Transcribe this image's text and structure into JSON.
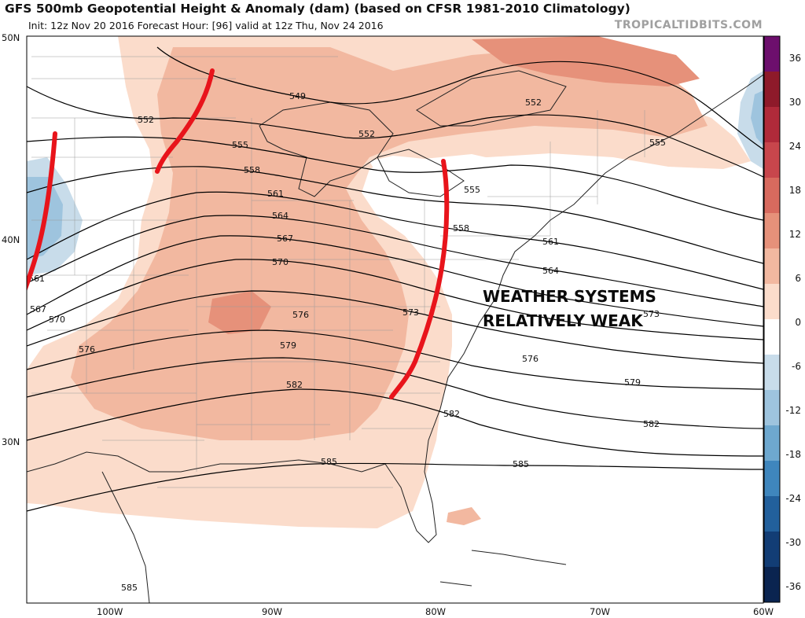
{
  "header": {
    "title": "GFS 500mb Geopotential Height & Anomaly (dam) (based on CFSR 1981-2010 Climatology)",
    "subtitle": "Init: 12z Nov 20 2016   Forecast Hour: [96]   valid at 12z Thu, Nov 24 2016",
    "source": "TROPICALTIDBITS.COM"
  },
  "axes": {
    "lat_labels": [
      "50N",
      "40N",
      "30N"
    ],
    "lon_labels": [
      "100W",
      "90W",
      "80W",
      "70W",
      "60W"
    ]
  },
  "colorbar": {
    "ticks": [
      "36",
      "30",
      "24",
      "18",
      "12",
      "6",
      "0",
      "-6",
      "-12",
      "-18",
      "-24",
      "-30",
      "-36"
    ],
    "colors": [
      "#6d0f6d",
      "#8e1a2a",
      "#b02a3a",
      "#c8464c",
      "#d86a5e",
      "#e6917a",
      "#f2b8a0",
      "#fbdccb",
      "#ffffff",
      "#c8dcea",
      "#9ec4de",
      "#6ea8cf",
      "#3f86bd",
      "#22609c",
      "#123d75",
      "#0a2450"
    ]
  },
  "contour_labels": {
    "c549": "549",
    "c552a": "552",
    "c552b": "552",
    "c552c": "552",
    "c555a": "555",
    "c555b": "555",
    "c555c": "555",
    "c558a": "558",
    "c558b": "558",
    "c561a": "561",
    "c561b": "561",
    "c561c": "561",
    "c564a": "564",
    "c564b": "564",
    "c567a": "567",
    "c567b": "567",
    "c570a": "570",
    "c570b": "570",
    "c573a": "573",
    "c573b": "573",
    "c576a": "576",
    "c576b": "576",
    "c576c": "576",
    "c579a": "579",
    "c579b": "579",
    "c582a": "582",
    "c582b": "582",
    "c582c": "582",
    "c585a": "585",
    "c585b": "585",
    "c585c": "585"
  },
  "annotation": {
    "line1": "WEATHER SYSTEMS",
    "line2": "RELATIVELY WEAK"
  },
  "colors": {
    "anomaly_light": "#fbdccb",
    "anomaly_mid": "#f2b8a0",
    "anomaly_strong": "#e6917a",
    "anomaly_negative": "#9ec4de",
    "drawn_trough_lines": "#e8141b"
  }
}
